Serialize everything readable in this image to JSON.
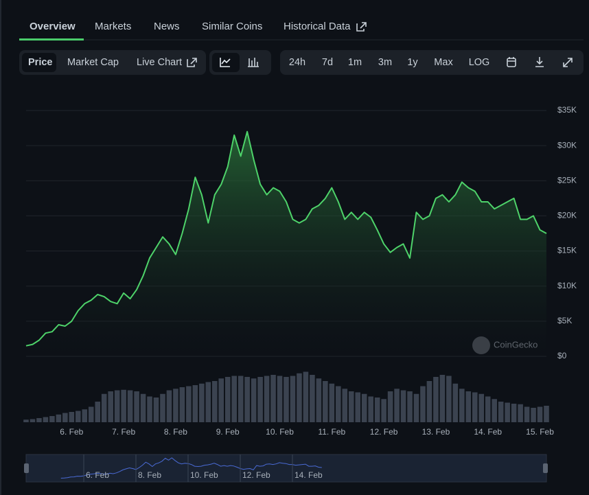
{
  "tabs": [
    "Overview",
    "Markets",
    "News",
    "Similar Coins",
    "Historical Data"
  ],
  "toolbar": {
    "views": [
      "Price",
      "Market Cap",
      "Live Chart"
    ],
    "ranges": [
      "24h",
      "7d",
      "1m",
      "3m",
      "1y",
      "Max",
      "LOG"
    ]
  },
  "watermark": "CoinGecko",
  "navigator": {
    "labels": [
      "6. Feb",
      "8. Feb",
      "10. Feb",
      "12. Feb",
      "14. Feb"
    ]
  },
  "chart_data": {
    "type": "line",
    "categories": [
      null,
      null,
      null,
      null,
      null,
      null,
      null,
      "6. Feb",
      null,
      null,
      null,
      null,
      null,
      null,
      null,
      "7. Feb",
      null,
      null,
      null,
      null,
      null,
      null,
      null,
      "8. Feb",
      null,
      null,
      null,
      null,
      null,
      null,
      null,
      "9. Feb",
      null,
      null,
      null,
      null,
      null,
      null,
      null,
      "10. Feb",
      null,
      null,
      null,
      null,
      null,
      null,
      null,
      "11. Feb",
      null,
      null,
      null,
      null,
      null,
      null,
      null,
      "12. Feb",
      null,
      null,
      null,
      null,
      null,
      null,
      null,
      "13. Feb",
      null,
      null,
      null,
      null,
      null,
      null,
      null,
      "14. Feb",
      null,
      null,
      null,
      null,
      null,
      null,
      null,
      "15. Feb",
      null
    ],
    "series": [
      {
        "name": "Price",
        "color": "#4ed36a",
        "values": [
          1500,
          1700,
          2300,
          3300,
          3500,
          4500,
          4300,
          5000,
          6500,
          7500,
          8000,
          8800,
          8500,
          7800,
          7500,
          9000,
          8200,
          9500,
          11500,
          14000,
          15500,
          17000,
          16000,
          14500,
          17500,
          21000,
          25500,
          23000,
          19000,
          23000,
          24500,
          27000,
          31500,
          28500,
          32000,
          28000,
          24500,
          23000,
          24000,
          23500,
          22000,
          19500,
          19000,
          19500,
          21000,
          21500,
          22500,
          24000,
          22000,
          19500,
          20500,
          19500,
          20500,
          19800,
          18000,
          16000,
          14800,
          15500,
          16000,
          14000,
          20500,
          19500,
          20000,
          22500,
          23000,
          22000,
          23000,
          24800,
          24000,
          23500,
          22000,
          22000,
          21000,
          21500,
          22000,
          22500,
          19500,
          19500,
          20000,
          18000,
          17500
        ]
      },
      {
        "color": "#3b4350",
        "axis": "y2",
        "values": [
          5,
          6,
          8,
          10,
          12,
          15,
          18,
          20,
          22,
          25,
          30,
          40,
          55,
          60,
          62,
          63,
          62,
          60,
          55,
          50,
          48,
          55,
          62,
          65,
          68,
          70,
          72,
          75,
          78,
          80,
          85,
          88,
          90,
          90,
          88,
          85,
          88,
          90,
          92,
          90,
          88,
          90,
          95,
          98,
          92,
          85,
          80,
          75,
          70,
          65,
          60,
          58,
          55,
          50,
          48,
          45,
          60,
          65,
          62,
          60,
          55,
          70,
          80,
          88,
          92,
          90,
          75,
          65,
          60,
          58,
          55,
          50,
          45,
          40,
          38,
          36,
          35,
          30,
          28,
          30,
          32
        ]
      }
    ],
    "ylim": [
      0,
      35000
    ],
    "yticks": [
      {
        "value": 0,
        "label": "$0"
      },
      {
        "value": 5000,
        "label": "$5K"
      },
      {
        "value": 10000,
        "label": "$10K"
      },
      {
        "value": 15000,
        "label": "$15K"
      },
      {
        "value": 20000,
        "label": "$20K"
      },
      {
        "value": 25000,
        "label": "$25K"
      },
      {
        "value": 30000,
        "label": "$30K"
      },
      {
        "value": 35000,
        "label": "$35K"
      }
    ],
    "y2lim": [
      0,
      100
    ],
    "grid": true
  }
}
